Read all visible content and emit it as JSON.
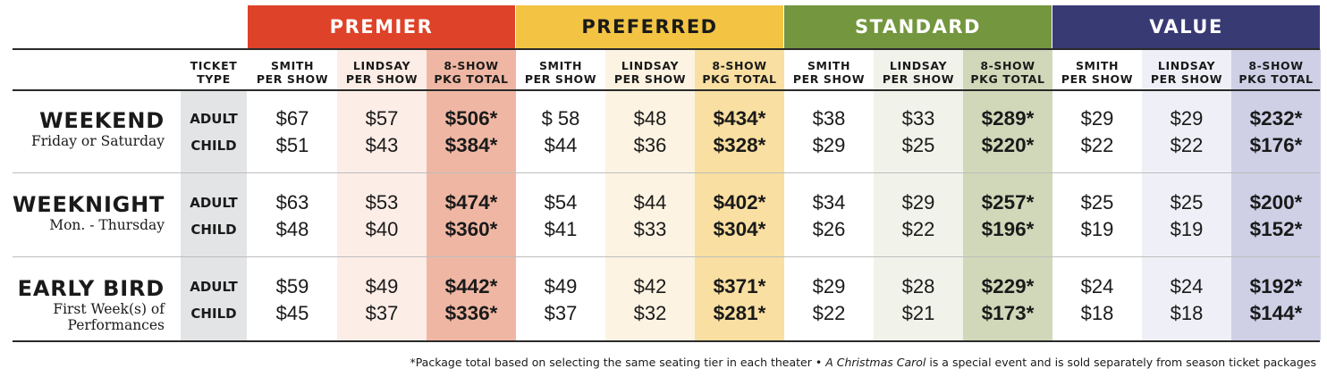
{
  "colors": {
    "premier": "#de4228",
    "preferred": "#f3c443",
    "standard": "#73963e",
    "value": "#383a74",
    "premier_pkg_bg": "#efb7a3",
    "preferred_pkg_bg": "#f9dfa1",
    "standard_pkg_bg": "#d1d8b9",
    "value_pkg_bg": "#cfd0e6",
    "premier_lindsay_bg": "#fcede6",
    "preferred_lindsay_bg": "#fdf3e2",
    "standard_lindsay_bg": "#f1f3ea",
    "value_lindsay_bg": "#eff0f7",
    "ticket_type_bg": "#e3e4e6"
  },
  "header": {
    "ticket_type_l1": "TICKET",
    "ticket_type_l2": "TYPE"
  },
  "tiers": [
    {
      "name": "PREMIER"
    },
    {
      "name": "PREFERRED"
    },
    {
      "name": "STANDARD"
    },
    {
      "name": "VALUE"
    }
  ],
  "subheads": [
    {
      "l1": "SMITH",
      "l2": "PER SHOW"
    },
    {
      "l1": "LINDSAY",
      "l2": "PER SHOW"
    },
    {
      "l1": "8-SHOW",
      "l2": "PKG TOTAL"
    }
  ],
  "rows": [
    {
      "name": "WEEKEND",
      "sub": [
        "Friday or Saturday"
      ],
      "types": [
        "ADULT",
        "CHILD"
      ],
      "prices": [
        [
          "$67",
          "$57",
          "$506*",
          "$ 58",
          "$48",
          "$434*",
          "$38",
          "$33",
          "$289*",
          "$29",
          "$29",
          "$232*"
        ],
        [
          "$51",
          "$43",
          "$384*",
          "$44",
          "$36",
          "$328*",
          "$29",
          "$25",
          "$220*",
          "$22",
          "$22",
          "$176*"
        ]
      ]
    },
    {
      "name": "WEEKNIGHT",
      "sub": [
        "Mon. - Thursday"
      ],
      "types": [
        "ADULT",
        "CHILD"
      ],
      "prices": [
        [
          "$63",
          "$53",
          "$474*",
          "$54",
          "$44",
          "$402*",
          "$34",
          "$29",
          "$257*",
          "$25",
          "$25",
          "$200*"
        ],
        [
          "$48",
          "$40",
          "$360*",
          "$41",
          "$33",
          "$304*",
          "$26",
          "$22",
          "$196*",
          "$19",
          "$19",
          "$152*"
        ]
      ]
    },
    {
      "name": "EARLY BIRD",
      "sub": [
        "First Week(s) of",
        "Performances"
      ],
      "types": [
        "ADULT",
        "CHILD"
      ],
      "prices": [
        [
          "$59",
          "$49",
          "$442*",
          "$49",
          "$42",
          "$371*",
          "$29",
          "$28",
          "$229*",
          "$24",
          "$24",
          "$192*"
        ],
        [
          "$45",
          "$37",
          "$336*",
          "$37",
          "$32",
          "$281*",
          "$22",
          "$21",
          "$173*",
          "$18",
          "$18",
          "$144*"
        ]
      ]
    }
  ],
  "footnote": {
    "part1": "*Package total based on selecting the same seating tier in each theater  •  ",
    "title": "A Christmas Carol",
    "part2": " is a special event and is sold separately from season ticket packages"
  }
}
